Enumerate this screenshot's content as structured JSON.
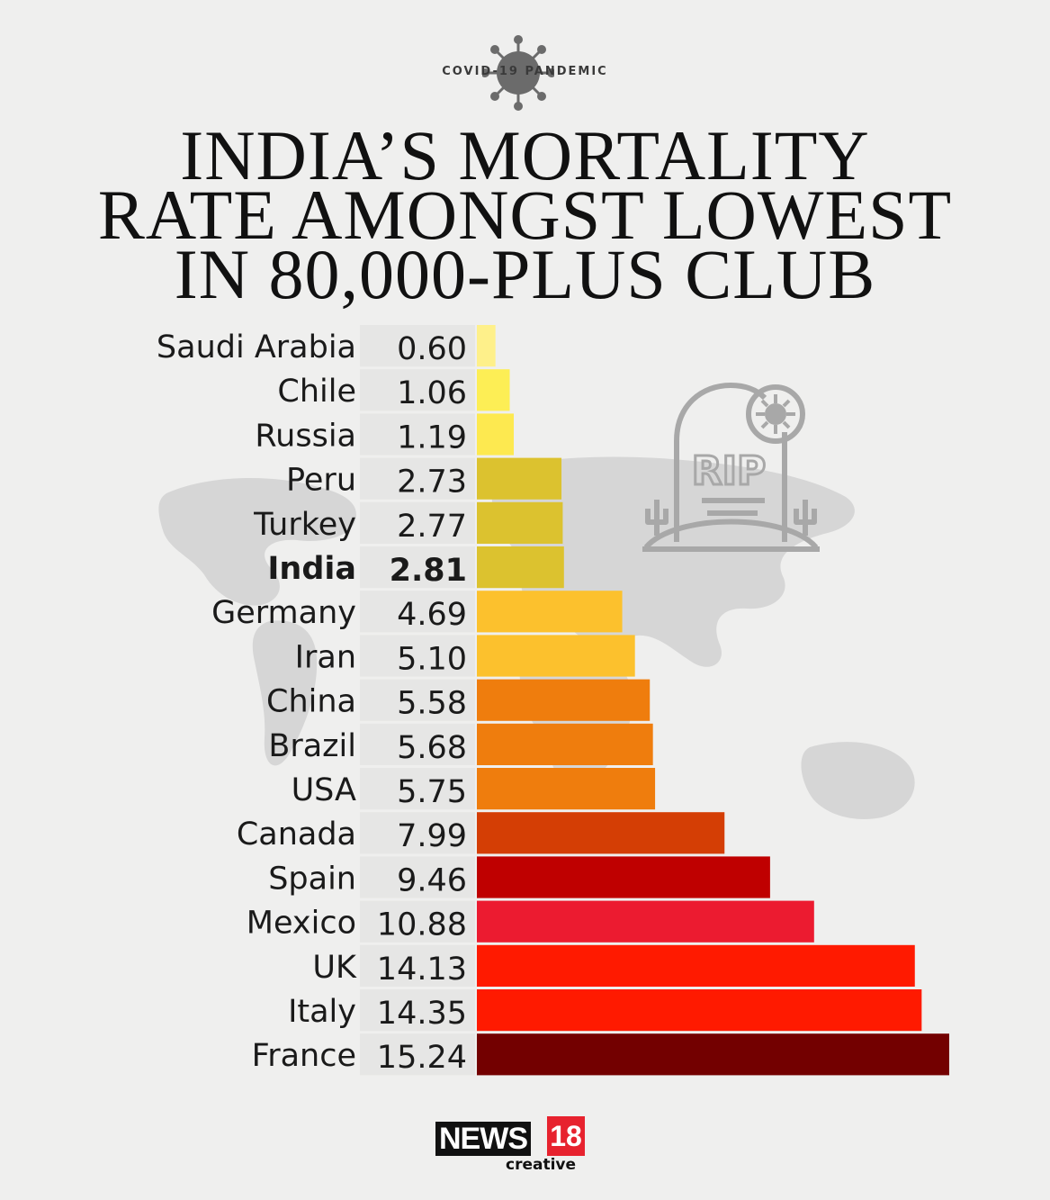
{
  "header": {
    "kicker": "COVID-19 PANDEMIC",
    "title_lines": [
      "INDIA’S MORTALITY",
      "RATE AMONGST LOWEST",
      "IN 80,000-PLUS CLUB"
    ]
  },
  "chart_data": {
    "type": "bar",
    "orientation": "horizontal",
    "title": "INDIA’S MORTALITY RATE AMONGST LOWEST IN 80,000-PLUS CLUB",
    "categories": [
      "Saudi Arabia",
      "Chile",
      "Russia",
      "Peru",
      "Turkey",
      "India",
      "Germany",
      "Iran",
      "China",
      "Brazil",
      "USA",
      "Canada",
      "Spain",
      "Mexico",
      "UK",
      "Italy",
      "France"
    ],
    "values": [
      0.6,
      1.06,
      1.19,
      2.73,
      2.77,
      2.81,
      4.69,
      5.1,
      5.58,
      5.68,
      5.75,
      7.99,
      9.46,
      10.88,
      14.13,
      14.35,
      15.24
    ],
    "value_labels": [
      "0.60",
      "1.06",
      "1.19",
      "2.73",
      "2.77",
      "2.81",
      "4.69",
      "5.10",
      "5.58",
      "5.68",
      "5.75",
      "7.99",
      "9.46",
      "10.88",
      "14.13",
      "14.35",
      "15.24"
    ],
    "bar_colors": [
      "#fef08a",
      "#fdee55",
      "#fde950",
      "#dcc22f",
      "#dcc22f",
      "#dcc22f",
      "#fcc12d",
      "#fcc12d",
      "#ef7d0d",
      "#ef7d0d",
      "#ef7d0d",
      "#d43e05",
      "#bf0000",
      "#ec1b30",
      "#ff1a00",
      "#ff1a00",
      "#730000"
    ],
    "highlight": "India",
    "xlim": [
      0,
      15.24
    ],
    "grid": false,
    "legend": "none"
  },
  "decorations": {
    "tombstone_text": "RIP",
    "icons": [
      "virus-icon",
      "tombstone-icon",
      "world-map"
    ]
  },
  "brand": {
    "name": "NEWS",
    "number": "18",
    "tagline": "creative"
  }
}
